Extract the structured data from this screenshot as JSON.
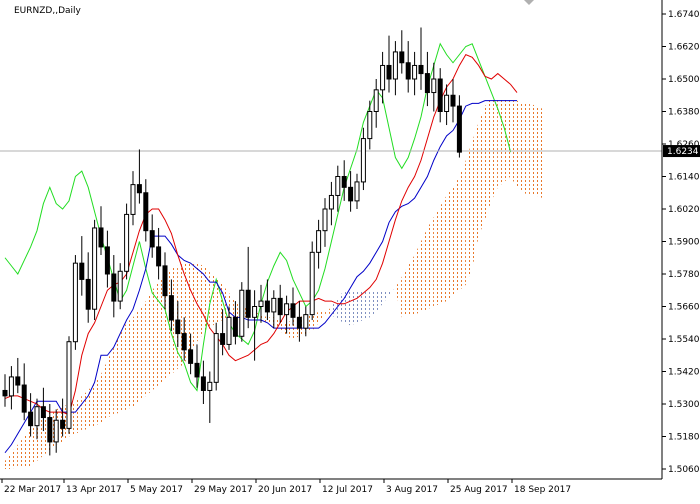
{
  "window": {
    "title": "EURNZD,,Daily"
  },
  "colors": {
    "background": "#ffffff",
    "candle": "#000000",
    "tenkan": "#e00000",
    "kijun": "#0000c8",
    "chikou": "#22dd22",
    "cloud_bear": "#e8782a",
    "cloud_bull": "#7f8fbf",
    "price_line": "#b0b0b0",
    "price_box": "#000000",
    "price_box_text": "#ffffff"
  },
  "chart_data": {
    "type": "candlestick",
    "title": "EURNZD,,Daily",
    "symbol": "EURNZD",
    "timeframe": "Daily",
    "ylim": [
      1.506,
      1.674
    ],
    "y_ticks": [
      "1.6740",
      "1.6620",
      "1.6500",
      "1.6380",
      "1.6260",
      "1.6140",
      "1.6020",
      "1.5900",
      "1.5780",
      "1.5660",
      "1.5540",
      "1.5420",
      "1.5300",
      "1.5180",
      "1.5060"
    ],
    "x_ticks": [
      "22 Mar 2017",
      "13 Apr 2017",
      "5 May 2017",
      "29 May 2017",
      "20 Jun 2017",
      "12 Jul 2017",
      "3 Aug 2017",
      "25 Aug 2017",
      "18 Sep 2017"
    ],
    "current_price": "1.6234",
    "grid": false,
    "series": [
      {
        "key": "tenkan",
        "values": [
          1.532,
          1.533,
          1.533,
          1.532,
          1.531,
          1.53,
          1.528,
          1.527,
          1.527,
          1.527,
          1.526,
          1.535,
          1.548,
          1.556,
          1.56,
          1.566,
          1.572,
          1.574,
          1.575,
          1.578,
          1.586,
          1.594,
          1.6,
          1.602,
          1.602,
          1.598,
          1.593,
          1.585,
          1.578,
          1.572,
          1.567,
          1.563,
          1.558,
          1.555,
          1.552,
          1.548,
          1.546,
          1.547,
          1.548,
          1.55,
          1.552,
          1.553,
          1.556,
          1.56,
          1.564,
          1.566,
          1.568,
          1.568,
          1.568,
          1.569,
          1.568,
          1.568,
          1.567,
          1.567,
          1.568,
          1.569,
          1.571,
          1.573,
          1.576,
          1.582,
          1.59,
          1.598,
          1.605,
          1.61,
          1.614,
          1.62,
          1.628,
          1.636,
          1.642,
          1.647,
          1.65,
          1.655,
          1.659,
          1.658,
          1.655,
          1.651,
          1.65,
          1.652,
          1.65,
          1.648,
          1.645
        ]
      },
      {
        "key": "kijun",
        "values": [
          1.512,
          1.515,
          1.519,
          1.523,
          1.527,
          1.531,
          1.531,
          1.531,
          1.531,
          1.527,
          1.527,
          1.527,
          1.53,
          1.533,
          1.538,
          1.548,
          1.548,
          1.551,
          1.556,
          1.561,
          1.565,
          1.572,
          1.58,
          1.592,
          1.592,
          1.592,
          1.589,
          1.585,
          1.583,
          1.582,
          1.58,
          1.578,
          1.575,
          1.575,
          1.571,
          1.564,
          1.562,
          1.562,
          1.561,
          1.561,
          1.561,
          1.56,
          1.558,
          1.558,
          1.558,
          1.558,
          1.558,
          1.558,
          1.558,
          1.558,
          1.56,
          1.563,
          1.566,
          1.569,
          1.573,
          1.577,
          1.579,
          1.582,
          1.586,
          1.59,
          1.597,
          1.601,
          1.603,
          1.604,
          1.606,
          1.61,
          1.614,
          1.62,
          1.625,
          1.629,
          1.631,
          1.635,
          1.64,
          1.641,
          1.641,
          1.642,
          1.642,
          1.642,
          1.642,
          1.642,
          1.642
        ]
      },
      {
        "key": "chikou",
        "values": [
          1.584,
          1.581,
          1.578,
          1.583,
          1.588,
          1.594,
          1.604,
          1.61,
          1.604,
          1.602,
          1.605,
          1.614,
          1.616,
          1.61,
          1.601,
          1.592,
          1.584,
          1.576,
          1.568,
          1.572,
          1.581,
          1.59,
          1.58,
          1.571,
          1.568,
          1.565,
          1.556,
          1.549,
          1.545,
          1.538,
          1.535,
          1.552,
          1.567,
          1.576,
          1.568,
          1.56,
          1.556,
          1.554,
          1.552,
          1.557,
          1.567,
          1.575,
          1.581,
          1.586,
          1.583,
          1.576,
          1.571,
          1.566,
          1.568,
          1.572,
          1.58,
          1.59,
          1.6,
          1.61,
          1.617,
          1.624,
          1.634,
          1.64,
          1.646,
          1.643,
          1.632,
          1.621,
          1.617,
          1.621,
          1.628,
          1.636,
          1.647,
          1.655,
          1.663,
          1.659,
          1.656,
          1.659,
          1.662,
          1.663,
          1.657,
          1.651,
          1.645,
          1.639,
          1.632,
          1.623
        ]
      },
      {
        "key": "span_a",
        "values": [
          1.509,
          1.512,
          1.515,
          1.518,
          1.521,
          1.523,
          1.525,
          1.527,
          1.528,
          1.529,
          1.53,
          1.531,
          1.533,
          1.535,
          1.538,
          1.541,
          1.546,
          1.551,
          1.556,
          1.56,
          1.562,
          1.565,
          1.568,
          1.572,
          1.575,
          1.578,
          1.58,
          1.581,
          1.582,
          1.582,
          1.582,
          1.581,
          1.579,
          1.577,
          1.574,
          1.571,
          1.568,
          1.566,
          1.565,
          1.564,
          1.563,
          1.562,
          1.562,
          1.561,
          1.56,
          1.561,
          1.562,
          1.563,
          1.563,
          1.564,
          1.564,
          1.563,
          1.561,
          1.56,
          1.559,
          1.56,
          1.561,
          1.562,
          1.564,
          1.567,
          1.57,
          1.573,
          1.577,
          1.581,
          1.585,
          1.59,
          1.595,
          1.599,
          1.603,
          1.607,
          1.61,
          1.614,
          1.62,
          1.627,
          1.634,
          1.64,
          1.643,
          1.643,
          1.643,
          1.642,
          1.642,
          1.641,
          1.641,
          1.64,
          1.639
        ]
      },
      {
        "key": "span_b",
        "values": [
          1.506,
          1.506,
          1.507,
          1.507,
          1.507,
          1.509,
          1.511,
          1.513,
          1.515,
          1.516,
          1.518,
          1.519,
          1.52,
          1.521,
          1.522,
          1.523,
          1.525,
          1.526,
          1.527,
          1.528,
          1.529,
          1.531,
          1.533,
          1.535,
          1.537,
          1.539,
          1.541,
          1.543,
          1.545,
          1.549,
          1.553,
          1.556,
          1.558,
          1.56,
          1.561,
          1.562,
          1.562,
          1.562,
          1.562,
          1.562,
          1.561,
          1.56,
          1.559,
          1.557,
          1.555,
          1.554,
          1.555,
          1.556,
          1.557,
          1.56,
          1.563,
          1.566,
          1.569,
          1.572,
          1.572,
          1.572,
          1.572,
          1.572,
          1.572,
          1.572,
          1.572,
          1.572,
          1.562,
          1.563,
          1.563,
          1.564,
          1.565,
          1.566,
          1.567,
          1.568,
          1.57,
          1.572,
          1.574,
          1.58,
          1.592,
          1.598,
          1.605,
          1.61,
          1.612,
          1.614,
          1.61,
          1.608,
          1.607,
          1.607,
          1.606
        ]
      }
    ],
    "candles": [
      {
        "o": 1.535,
        "h": 1.541,
        "l": 1.529,
        "c": 1.533
      },
      {
        "o": 1.533,
        "h": 1.544,
        "l": 1.528,
        "c": 1.54
      },
      {
        "o": 1.54,
        "h": 1.547,
        "l": 1.534,
        "c": 1.537
      },
      {
        "o": 1.537,
        "h": 1.545,
        "l": 1.524,
        "c": 1.527
      },
      {
        "o": 1.527,
        "h": 1.534,
        "l": 1.518,
        "c": 1.522
      },
      {
        "o": 1.522,
        "h": 1.532,
        "l": 1.517,
        "c": 1.529
      },
      {
        "o": 1.529,
        "h": 1.536,
        "l": 1.52,
        "c": 1.525
      },
      {
        "o": 1.525,
        "h": 1.53,
        "l": 1.511,
        "c": 1.516
      },
      {
        "o": 1.516,
        "h": 1.528,
        "l": 1.512,
        "c": 1.524
      },
      {
        "o": 1.524,
        "h": 1.532,
        "l": 1.518,
        "c": 1.521
      },
      {
        "o": 1.521,
        "h": 1.555,
        "l": 1.519,
        "c": 1.553
      },
      {
        "o": 1.553,
        "h": 1.585,
        "l": 1.55,
        "c": 1.582
      },
      {
        "o": 1.582,
        "h": 1.592,
        "l": 1.57,
        "c": 1.576
      },
      {
        "o": 1.576,
        "h": 1.586,
        "l": 1.56,
        "c": 1.565
      },
      {
        "o": 1.565,
        "h": 1.598,
        "l": 1.561,
        "c": 1.595
      },
      {
        "o": 1.595,
        "h": 1.603,
        "l": 1.585,
        "c": 1.588
      },
      {
        "o": 1.588,
        "h": 1.594,
        "l": 1.573,
        "c": 1.578
      },
      {
        "o": 1.578,
        "h": 1.585,
        "l": 1.562,
        "c": 1.568
      },
      {
        "o": 1.568,
        "h": 1.582,
        "l": 1.565,
        "c": 1.579
      },
      {
        "o": 1.579,
        "h": 1.604,
        "l": 1.576,
        "c": 1.6
      },
      {
        "o": 1.6,
        "h": 1.616,
        "l": 1.596,
        "c": 1.611
      },
      {
        "o": 1.611,
        "h": 1.624,
        "l": 1.604,
        "c": 1.608
      },
      {
        "o": 1.608,
        "h": 1.613,
        "l": 1.59,
        "c": 1.594
      },
      {
        "o": 1.594,
        "h": 1.6,
        "l": 1.584,
        "c": 1.588
      },
      {
        "o": 1.588,
        "h": 1.595,
        "l": 1.576,
        "c": 1.581
      },
      {
        "o": 1.581,
        "h": 1.586,
        "l": 1.565,
        "c": 1.57
      },
      {
        "o": 1.57,
        "h": 1.576,
        "l": 1.557,
        "c": 1.561
      },
      {
        "o": 1.561,
        "h": 1.568,
        "l": 1.551,
        "c": 1.556
      },
      {
        "o": 1.556,
        "h": 1.562,
        "l": 1.546,
        "c": 1.55
      },
      {
        "o": 1.55,
        "h": 1.556,
        "l": 1.541,
        "c": 1.545
      },
      {
        "o": 1.545,
        "h": 1.552,
        "l": 1.536,
        "c": 1.54
      },
      {
        "o": 1.54,
        "h": 1.546,
        "l": 1.53,
        "c": 1.535
      },
      {
        "o": 1.535,
        "h": 1.542,
        "l": 1.523,
        "c": 1.538
      },
      {
        "o": 1.538,
        "h": 1.56,
        "l": 1.535,
        "c": 1.556
      },
      {
        "o": 1.556,
        "h": 1.565,
        "l": 1.548,
        "c": 1.552
      },
      {
        "o": 1.552,
        "h": 1.566,
        "l": 1.55,
        "c": 1.562
      },
      {
        "o": 1.562,
        "h": 1.568,
        "l": 1.552,
        "c": 1.555
      },
      {
        "o": 1.555,
        "h": 1.575,
        "l": 1.553,
        "c": 1.572
      },
      {
        "o": 1.572,
        "h": 1.588,
        "l": 1.558,
        "c": 1.562
      },
      {
        "o": 1.562,
        "h": 1.572,
        "l": 1.546,
        "c": 1.566
      },
      {
        "o": 1.566,
        "h": 1.574,
        "l": 1.56,
        "c": 1.568
      },
      {
        "o": 1.568,
        "h": 1.576,
        "l": 1.561,
        "c": 1.564
      },
      {
        "o": 1.564,
        "h": 1.572,
        "l": 1.558,
        "c": 1.569
      },
      {
        "o": 1.569,
        "h": 1.574,
        "l": 1.56,
        "c": 1.563
      },
      {
        "o": 1.563,
        "h": 1.57,
        "l": 1.556,
        "c": 1.567
      },
      {
        "o": 1.567,
        "h": 1.573,
        "l": 1.559,
        "c": 1.562
      },
      {
        "o": 1.562,
        "h": 1.568,
        "l": 1.553,
        "c": 1.558
      },
      {
        "o": 1.558,
        "h": 1.566,
        "l": 1.555,
        "c": 1.563
      },
      {
        "o": 1.563,
        "h": 1.59,
        "l": 1.561,
        "c": 1.586
      },
      {
        "o": 1.586,
        "h": 1.598,
        "l": 1.58,
        "c": 1.594
      },
      {
        "o": 1.594,
        "h": 1.606,
        "l": 1.588,
        "c": 1.602
      },
      {
        "o": 1.602,
        "h": 1.612,
        "l": 1.596,
        "c": 1.607
      },
      {
        "o": 1.607,
        "h": 1.618,
        "l": 1.601,
        "c": 1.614
      },
      {
        "o": 1.614,
        "h": 1.62,
        "l": 1.605,
        "c": 1.61
      },
      {
        "o": 1.61,
        "h": 1.616,
        "l": 1.601,
        "c": 1.605
      },
      {
        "o": 1.605,
        "h": 1.615,
        "l": 1.602,
        "c": 1.612
      },
      {
        "o": 1.612,
        "h": 1.632,
        "l": 1.609,
        "c": 1.628
      },
      {
        "o": 1.628,
        "h": 1.642,
        "l": 1.624,
        "c": 1.638
      },
      {
        "o": 1.638,
        "h": 1.65,
        "l": 1.632,
        "c": 1.646
      },
      {
        "o": 1.646,
        "h": 1.66,
        "l": 1.641,
        "c": 1.655
      },
      {
        "o": 1.655,
        "h": 1.666,
        "l": 1.645,
        "c": 1.65
      },
      {
        "o": 1.65,
        "h": 1.664,
        "l": 1.644,
        "c": 1.66
      },
      {
        "o": 1.66,
        "h": 1.668,
        "l": 1.652,
        "c": 1.656
      },
      {
        "o": 1.656,
        "h": 1.664,
        "l": 1.645,
        "c": 1.65
      },
      {
        "o": 1.65,
        "h": 1.66,
        "l": 1.644,
        "c": 1.655
      },
      {
        "o": 1.655,
        "h": 1.669,
        "l": 1.646,
        "c": 1.652
      },
      {
        "o": 1.652,
        "h": 1.66,
        "l": 1.64,
        "c": 1.645
      },
      {
        "o": 1.645,
        "h": 1.656,
        "l": 1.638,
        "c": 1.65
      },
      {
        "o": 1.65,
        "h": 1.654,
        "l": 1.634,
        "c": 1.638
      },
      {
        "o": 1.638,
        "h": 1.648,
        "l": 1.633,
        "c": 1.644
      },
      {
        "o": 1.644,
        "h": 1.65,
        "l": 1.634,
        "c": 1.64
      },
      {
        "o": 1.64,
        "h": 1.644,
        "l": 1.621,
        "c": 1.623
      }
    ]
  }
}
